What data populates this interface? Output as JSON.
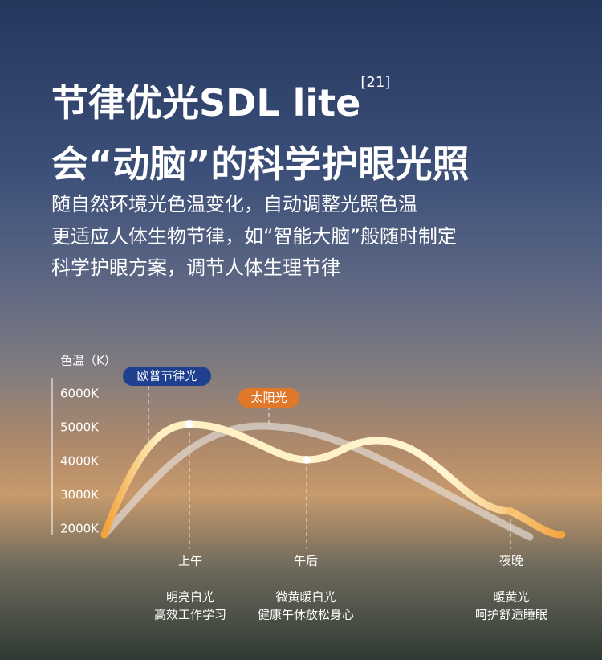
{
  "header": {
    "title_line1": "节律优光SDL lite",
    "superscript": "[21]",
    "title_line2": "会“动脑”的科学护眼光照",
    "description": [
      "随自然环境光色温变化，自动调整光照色温",
      "更适应人体生物节律，如“智能大脑”般随时制定",
      "科学护眼方案，调节人体生理节律"
    ]
  },
  "chart": {
    "axis_label": "色温（K）",
    "ticks": [
      "6000K",
      "5000K",
      "4000K",
      "3000K",
      "2000K"
    ],
    "tags": [
      "欧普节律光",
      "太阳光"
    ],
    "times": [
      {
        "label": "上午",
        "desc": [
          "明亮白光",
          "高效工作学习"
        ]
      },
      {
        "label": "午后",
        "desc": [
          "微黄暖白光",
          "健康午休放松身心"
        ]
      },
      {
        "label": "夜晚",
        "desc": [
          "暖黄光",
          "呵护舒适睡眠"
        ]
      }
    ]
  }
}
